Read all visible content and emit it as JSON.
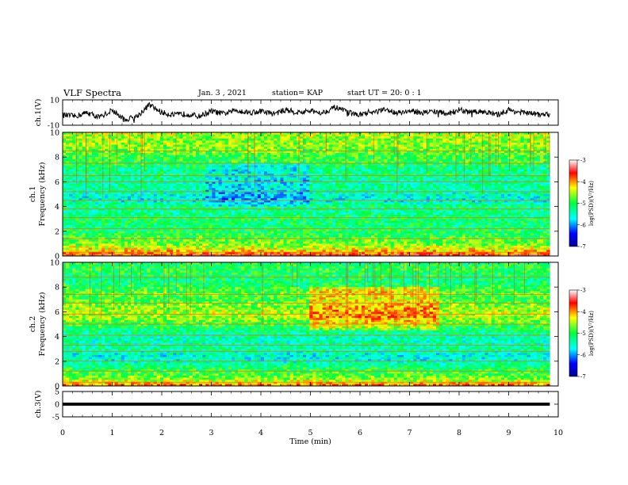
{
  "header": {
    "title": "VLF Spectra",
    "date": "Jan. 3 , 2021",
    "station": "station= KAP",
    "start": "start UT =  20: 0 : 1"
  },
  "chart_data": [
    {
      "type": "line",
      "name": "channel-1-waveform",
      "ylabel": "ch.1(V)",
      "ylim": [
        -10,
        10
      ],
      "yticks": [
        "10",
        "-10"
      ],
      "xlim": [
        0,
        10
      ],
      "x_end": 9.83,
      "x": [
        0,
        0.25,
        0.5,
        0.75,
        1.0,
        1.25,
        1.5,
        1.75,
        2.0,
        2.25,
        2.5,
        2.75,
        3.0,
        3.25,
        3.5,
        3.75,
        4.0,
        4.25,
        4.5,
        4.75,
        5.0,
        5.25,
        5.5,
        5.75,
        6.0,
        6.25,
        6.5,
        6.75,
        7.0,
        7.25,
        7.5,
        7.75,
        8.0,
        8.25,
        8.5,
        8.75,
        9.0,
        9.25,
        9.5,
        9.75
      ],
      "y": [
        -2,
        -3,
        0,
        -4,
        2,
        -6,
        -3,
        6,
        0,
        -2,
        -1,
        -3,
        1,
        -1,
        2,
        0,
        1,
        -1,
        2,
        0,
        1,
        0,
        4,
        0,
        -2,
        0,
        2,
        0,
        1,
        0,
        1,
        -1,
        2,
        0,
        1,
        -2,
        2,
        0,
        -1,
        -2
      ]
    },
    {
      "type": "heatmap",
      "name": "ch1-spectrogram",
      "ylabel": "ch.1\nFrequency (kHz)",
      "xlim": [
        0,
        10
      ],
      "ylim": [
        0,
        10
      ],
      "yticks": [
        "0",
        "2",
        "4",
        "6",
        "8",
        "10"
      ],
      "colorbar": {
        "label": "log(PSD)(V²/Hz)",
        "range": [
          -7,
          -3
        ],
        "ticks": [
          "-3",
          "-4",
          "-5",
          "-6",
          "-7"
        ]
      },
      "freq_profile_kHz": [
        0,
        0.5,
        1,
        1.5,
        2,
        2.5,
        3,
        3.5,
        4,
        4.5,
        5,
        5.5,
        6,
        6.5,
        7,
        7.5,
        8,
        8.5,
        9,
        9.5,
        10
      ],
      "freq_profile_logpsd": [
        -3.6,
        -4.3,
        -4.7,
        -4.9,
        -5.1,
        -5.2,
        -5.1,
        -5.3,
        -5.2,
        -5.6,
        -5.5,
        -5.3,
        -5.4,
        -5.2,
        -5.3,
        -5.0,
        -4.9,
        -4.8,
        -4.6,
        -4.6,
        -4.5
      ],
      "horizontal_lines_kHz": [
        0.3,
        1.4,
        2.2,
        3.1,
        3.8,
        4.5,
        5.2,
        6.0,
        6.5,
        7.5,
        8.5
      ]
    },
    {
      "type": "heatmap",
      "name": "ch2-spectrogram",
      "ylabel": "ch.2\nFrequency (kHz)",
      "xlim": [
        0,
        10
      ],
      "ylim": [
        0,
        10
      ],
      "yticks": [
        "0",
        "2",
        "4",
        "6",
        "8",
        "10"
      ],
      "colorbar": {
        "label": "log(PSD)(V²/Hz)",
        "range": [
          -7,
          -3
        ],
        "ticks": [
          "-3",
          "-4",
          "-5",
          "-6",
          "-7"
        ]
      },
      "freq_profile_kHz": [
        0,
        0.5,
        1,
        1.5,
        2,
        2.5,
        3,
        3.5,
        4,
        4.5,
        5,
        5.5,
        6,
        6.5,
        7,
        7.5,
        8,
        8.5,
        9,
        9.5,
        10
      ],
      "freq_profile_logpsd": [
        -3.8,
        -4.6,
        -4.9,
        -5.1,
        -5.5,
        -5.6,
        -5.3,
        -5.4,
        -5.4,
        -5.2,
        -4.9,
        -4.6,
        -4.5,
        -4.7,
        -4.9,
        -4.8,
        -5.0,
        -5.2,
        -5.1,
        -5.0,
        -5.1
      ],
      "horizontal_lines_kHz": [
        0.3,
        1.2,
        2.0,
        2.8,
        3.3,
        4.1,
        5.0,
        5.8,
        6.7,
        7.4,
        8.8
      ]
    },
    {
      "type": "area",
      "name": "channel-3",
      "ylabel": "ch.3(V)",
      "ylim": [
        -5,
        5
      ],
      "yticks": [
        "5",
        "0",
        "-5"
      ],
      "xlim": [
        0,
        10
      ],
      "band": [
        -0.6,
        0.6
      ],
      "x_end": 9.83,
      "xlabel": "Time (min)",
      "xticks": [
        "0",
        "1",
        "2",
        "3",
        "4",
        "5",
        "6",
        "7",
        "8",
        "9",
        "10"
      ]
    }
  ]
}
